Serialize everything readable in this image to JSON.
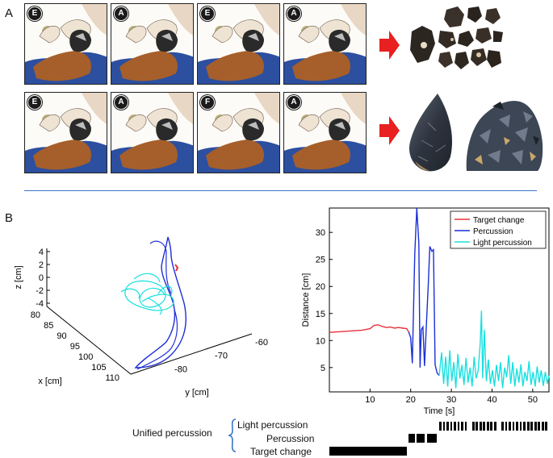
{
  "panels": {
    "a_label": "A",
    "b_label": "B"
  },
  "frames": {
    "row1": [
      "E",
      "A",
      "E",
      "A"
    ],
    "row2": [
      "E",
      "A",
      "F",
      "A"
    ]
  },
  "trajectory3d": {
    "z_label": "z [cm]",
    "x_label": "x [cm]",
    "y_label": "y [cm]",
    "z_ticks": [
      "4",
      "2",
      "0",
      "-2",
      "-4"
    ],
    "x_ticks": [
      "80",
      "85",
      "90",
      "95",
      "100",
      "105",
      "110"
    ],
    "y_ticks": [
      "-80",
      "-70",
      "-60"
    ]
  },
  "chart_data": {
    "type": "line",
    "xlabel": "Time [s]",
    "ylabel": "Distance [cm]",
    "xlim": [
      0,
      54
    ],
    "ylim": [
      0.5,
      34.5
    ],
    "x_ticks": [
      10,
      20,
      30,
      40,
      50
    ],
    "y_ticks": [
      5,
      10,
      15,
      20,
      25,
      30
    ],
    "legend_position": "top-right",
    "series": [
      {
        "name": "Target change",
        "color": "#e8323a",
        "x": [
          0,
          2,
          4,
          6,
          8,
          10,
          11,
          12,
          13,
          14,
          15,
          16,
          17,
          18,
          19,
          19.5
        ],
        "y": [
          11.5,
          11.6,
          11.7,
          11.8,
          11.9,
          12.2,
          12.8,
          12.9,
          12.6,
          12.4,
          12.5,
          12.3,
          12.4,
          12.3,
          12.2,
          11.6
        ]
      },
      {
        "name": "Percussion",
        "color": "#1a2fd6",
        "x": [
          19.5,
          20,
          20.4,
          21,
          21.5,
          22,
          22.3,
          22.6,
          23,
          23.4,
          23.8,
          24.3,
          24.7,
          25.2,
          25.6,
          26,
          26.5,
          27
        ],
        "y": [
          11.6,
          10.5,
          5.8,
          26,
          34.5,
          28,
          5,
          12,
          12.5,
          5.3,
          12,
          20,
          27.4,
          26.5,
          26.8,
          5.5,
          4,
          3.5
        ]
      },
      {
        "name": "Light percussion",
        "color": "#18e0e0",
        "x": [
          27,
          27.6,
          28.1,
          28.6,
          29.1,
          29.6,
          30.1,
          30.6,
          31.1,
          31.6,
          32.1,
          32.6,
          33.1,
          33.6,
          34.1,
          34.6,
          35.1,
          35.6,
          36.1,
          36.6,
          37.1,
          37.4,
          37.7,
          38.1,
          38.6,
          39.1,
          39.6,
          40.1,
          40.6,
          41.1,
          41.6,
          42.1,
          42.6,
          43.1,
          43.6,
          44.1,
          44.6,
          45.1,
          45.6,
          46.1,
          46.6,
          47.1,
          47.6,
          48.1,
          48.6,
          49.1,
          49.6,
          50.1,
          50.6,
          51.1,
          51.6,
          52.1,
          52.6,
          53.1,
          53.6,
          54
        ],
        "y": [
          3.5,
          7.8,
          2,
          7,
          1.5,
          8.2,
          2.5,
          6,
          1.2,
          7.5,
          3,
          5.5,
          1.8,
          6.8,
          2.2,
          5,
          1.5,
          7,
          3,
          4.5,
          9.5,
          15.5,
          3,
          12,
          2.5,
          6.5,
          2,
          4.5,
          1.5,
          5.5,
          2.5,
          6,
          1.2,
          5,
          3.2,
          7.3,
          2,
          6,
          1.5,
          4.8,
          2.2,
          5.6,
          1.5,
          4.2,
          2.5,
          6.2,
          1.8,
          4.2,
          1.5,
          5.2,
          2.2,
          4.5,
          1.6,
          4.2,
          2,
          3.5
        ]
      }
    ]
  },
  "timeline": {
    "unified_label": "Unified percussion",
    "rows": [
      "Light percussion",
      "Percussion",
      "Target change"
    ]
  }
}
